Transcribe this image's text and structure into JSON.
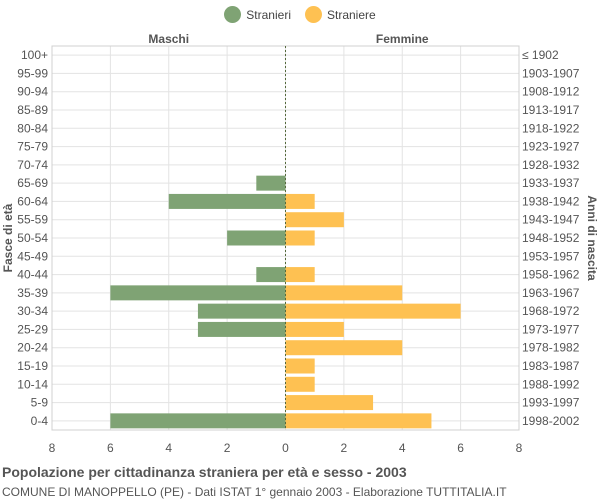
{
  "chart_data": {
    "type": "bar",
    "orientation": "horizontal-population-pyramid",
    "left_panel_label": "Maschi",
    "right_panel_label": "Femmine",
    "ylabel_left": "Fasce di età",
    "ylabel_right": "Anni di nascita",
    "age_groups": [
      "100+",
      "95-99",
      "90-94",
      "85-89",
      "80-84",
      "75-79",
      "70-74",
      "65-69",
      "60-64",
      "55-59",
      "50-54",
      "45-49",
      "40-44",
      "35-39",
      "30-34",
      "25-29",
      "20-24",
      "15-19",
      "10-14",
      "5-9",
      "0-4"
    ],
    "birth_years": [
      "≤ 1902",
      "1903-1907",
      "1908-1912",
      "1913-1917",
      "1918-1922",
      "1923-1927",
      "1928-1932",
      "1933-1937",
      "1938-1942",
      "1943-1947",
      "1948-1952",
      "1953-1957",
      "1958-1962",
      "1963-1967",
      "1968-1972",
      "1973-1977",
      "1978-1982",
      "1983-1987",
      "1988-1992",
      "1993-1997",
      "1998-2002"
    ],
    "series": [
      {
        "name": "Stranieri",
        "color": "#7fa374",
        "side": "left",
        "values": [
          0,
          0,
          0,
          0,
          0,
          0,
          0,
          1,
          4,
          0,
          2,
          0,
          1,
          6,
          3,
          3,
          0,
          0,
          0,
          0,
          6
        ]
      },
      {
        "name": "Straniere",
        "color": "#fec152",
        "side": "right",
        "values": [
          0,
          0,
          0,
          0,
          0,
          0,
          0,
          0,
          1,
          2,
          1,
          0,
          1,
          4,
          6,
          2,
          4,
          1,
          1,
          3,
          5
        ]
      }
    ],
    "x_ticks": [
      "8",
      "6",
      "4",
      "2",
      "0",
      "2",
      "4",
      "6",
      "8"
    ],
    "xlim": [
      -8,
      8
    ],
    "grid": true,
    "legend_position": "top-center",
    "title": "Popolazione per cittadinanza straniera per età e sesso - 2003",
    "subtitle": "COMUNE DI MANOPPELLO (PE) - Dati ISTAT 1° gennaio 2003 - Elaborazione TUTTITALIA.IT"
  }
}
